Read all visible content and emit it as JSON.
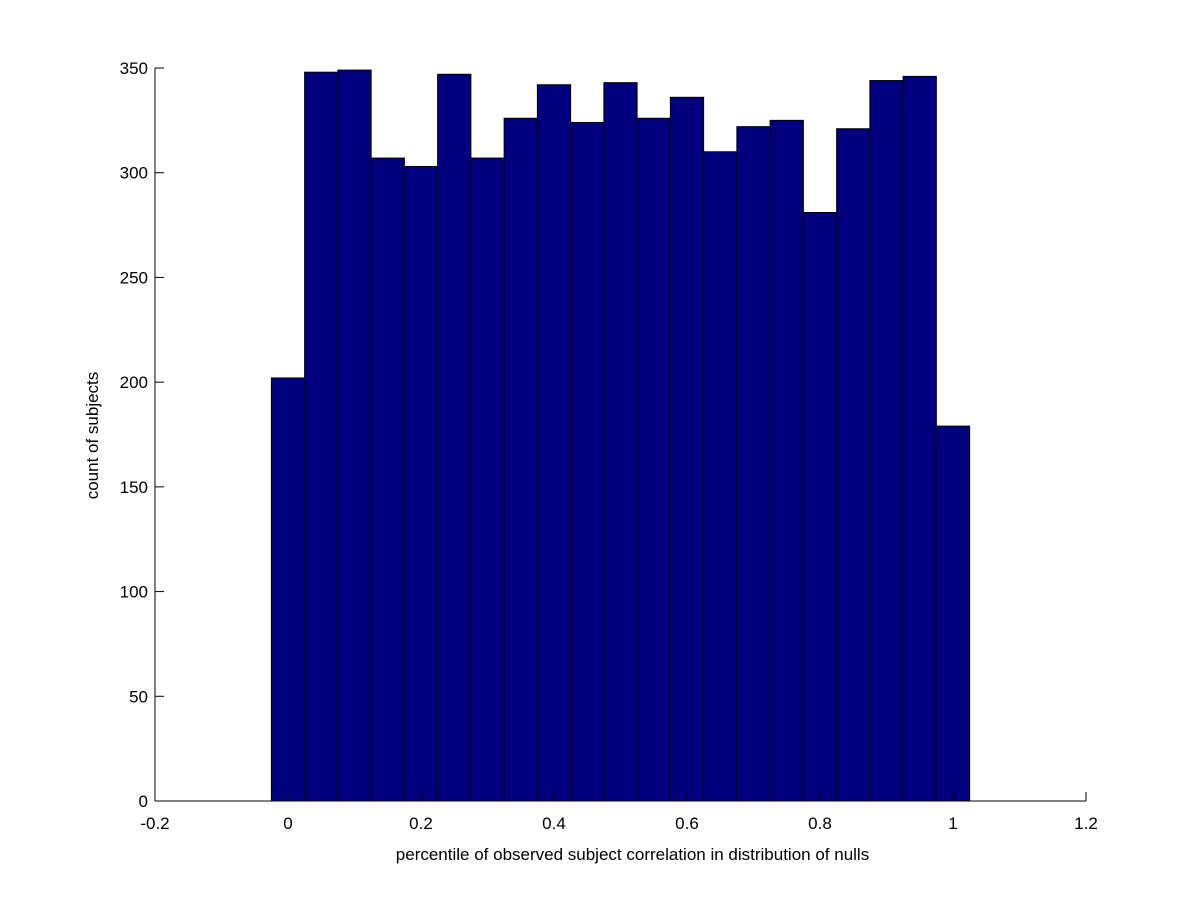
{
  "chart_data": {
    "type": "bar",
    "subtype": "histogram",
    "title": "",
    "xlabel": "percentile of observed subject correlation in distribution of nulls",
    "ylabel": "count of subjects",
    "xlim": [
      -0.2,
      1.2
    ],
    "ylim": [
      0,
      350
    ],
    "xticks": [
      -0.2,
      0,
      0.2,
      0.4,
      0.6,
      0.8,
      1,
      1.2
    ],
    "xtick_labels": [
      "-0.2",
      "0",
      "0.2",
      "0.4",
      "0.6",
      "0.8",
      "1",
      "1.2"
    ],
    "yticks": [
      0,
      50,
      100,
      150,
      200,
      250,
      300,
      350
    ],
    "ytick_labels": [
      "0",
      "50",
      "100",
      "150",
      "200",
      "250",
      "300",
      "350"
    ],
    "bin_width": 0.05,
    "x": [
      0,
      0.05,
      0.1,
      0.15,
      0.2,
      0.25,
      0.3,
      0.35,
      0.4,
      0.45,
      0.5,
      0.55,
      0.6,
      0.65,
      0.7,
      0.75,
      0.8,
      0.85,
      0.9,
      0.95,
      1
    ],
    "values": [
      202,
      348,
      349,
      307,
      303,
      347,
      307,
      326,
      342,
      324,
      343,
      326,
      336,
      310,
      322,
      325,
      281,
      321,
      344,
      346,
      179
    ],
    "bar_color": "#000080",
    "bar_edge_color": "#000000",
    "grid": false,
    "box": false
  }
}
